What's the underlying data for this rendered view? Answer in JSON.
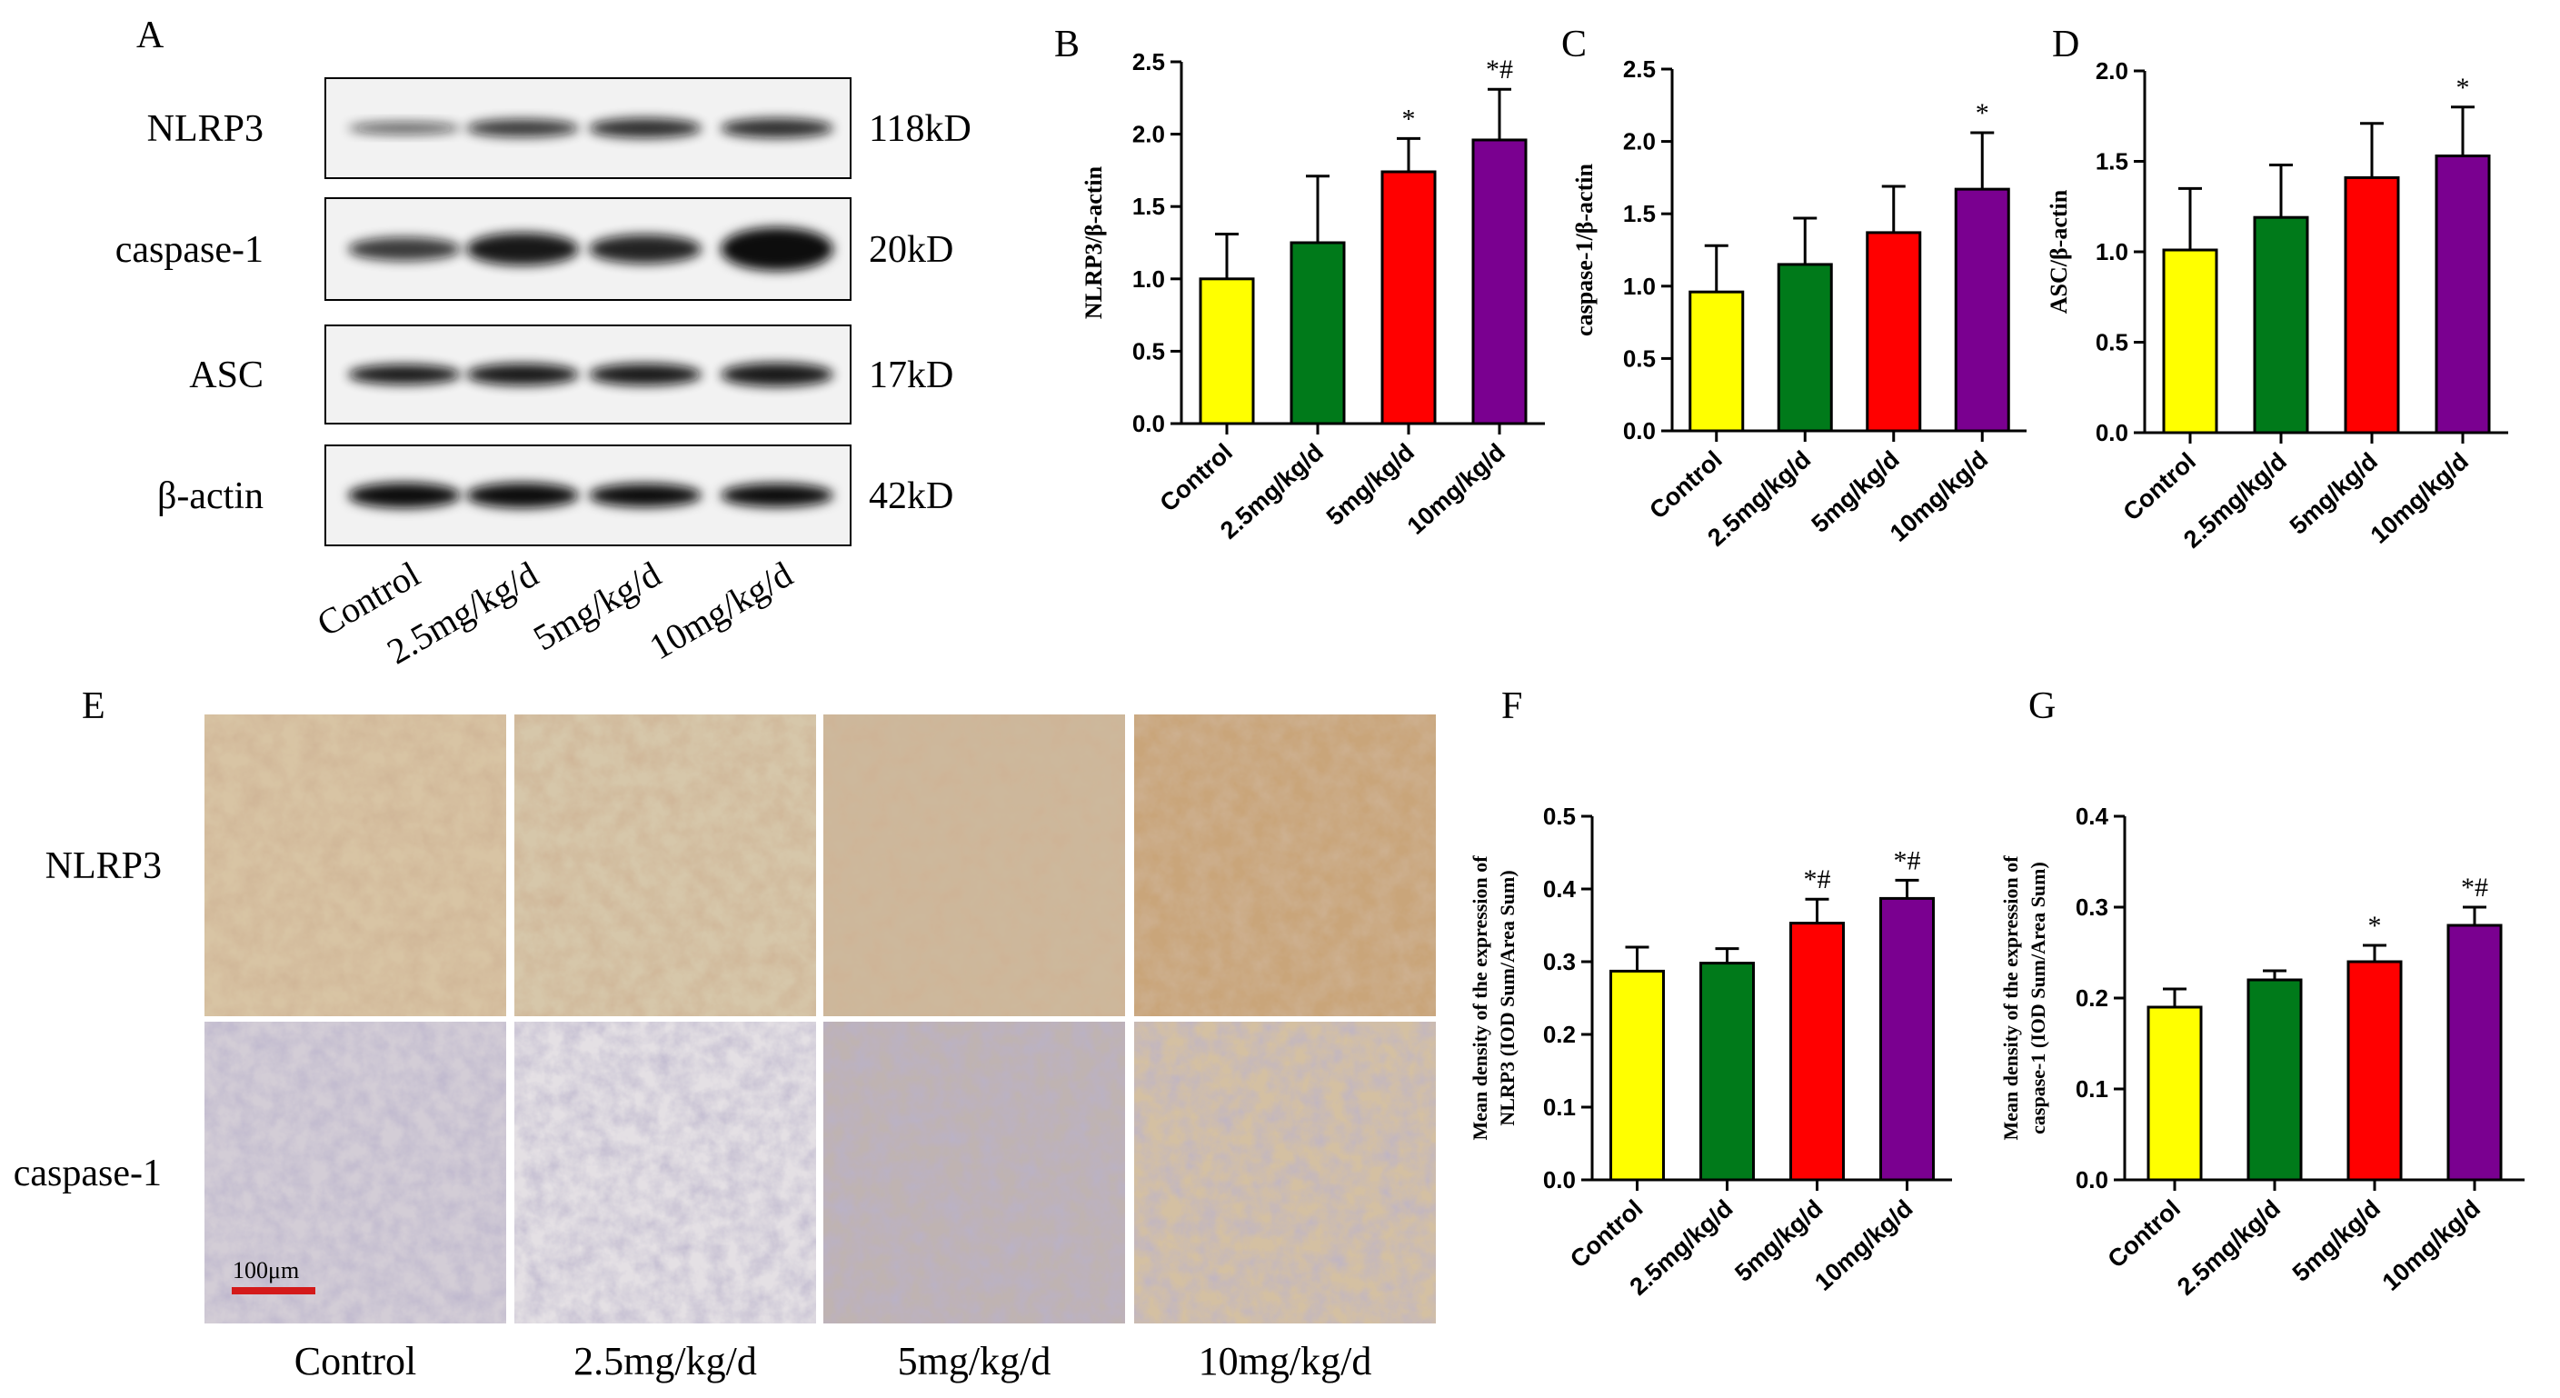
{
  "panel_letters": [
    "A",
    "B",
    "C",
    "D",
    "E",
    "F",
    "G"
  ],
  "colors": {
    "control": "#ffff00",
    "dose_2_5": "#007a1a",
    "dose_5": "#ff0000",
    "dose_10": "#7a0090",
    "scale_bar": "#d41a1a"
  },
  "western_blot": {
    "proteins": [
      "NLRP3",
      "caspase-1",
      "ASC",
      "β-actin"
    ],
    "sizes": [
      "118kD",
      "20kD",
      "17kD",
      "42kD"
    ],
    "lanes": [
      "Control",
      "2.5mg/kg/d",
      "5mg/kg/d",
      "10mg/kg/d"
    ]
  },
  "ihc": {
    "rows": [
      "NLRP3",
      "caspase-1"
    ],
    "columns": [
      "Control",
      "2.5mg/kg/d",
      "5mg/kg/d",
      "10mg/kg/d"
    ],
    "scale_bar_label": "100μm"
  },
  "chart_data": [
    {
      "panel": "B",
      "type": "bar",
      "ylabel": "NLRP3/β-actin",
      "ylim": [
        0,
        2.5
      ],
      "yticks": [
        "0.0",
        "0.5",
        "1.0",
        "1.5",
        "2.0",
        "2.5"
      ],
      "categories": [
        "Control",
        "2.5mg/kg/d",
        "5mg/kg/d",
        "10mg/kg/d"
      ],
      "values": [
        1.0,
        1.25,
        1.74,
        1.96
      ],
      "errors": [
        0.31,
        0.46,
        0.23,
        0.35
      ],
      "annotations": [
        "",
        "",
        "*",
        "*#"
      ],
      "grid": false
    },
    {
      "panel": "C",
      "type": "bar",
      "ylabel": "caspase-1/β-actin",
      "ylim": [
        0,
        2.5
      ],
      "yticks": [
        "0.0",
        "0.5",
        "1.0",
        "1.5",
        "2.0",
        "2.5"
      ],
      "categories": [
        "Control",
        "2.5mg/kg/d",
        "5mg/kg/d",
        "10mg/kg/d"
      ],
      "values": [
        0.96,
        1.15,
        1.37,
        1.67
      ],
      "errors": [
        0.32,
        0.32,
        0.32,
        0.39
      ],
      "annotations": [
        "",
        "",
        "",
        "*"
      ],
      "grid": false
    },
    {
      "panel": "D",
      "type": "bar",
      "ylabel": "ASC/β-actin",
      "ylim": [
        0,
        2.0
      ],
      "yticks": [
        "0.0",
        "0.5",
        "1.0",
        "1.5",
        "2.0"
      ],
      "categories": [
        "Control",
        "2.5mg/kg/d",
        "5mg/kg/d",
        "10mg/kg/d"
      ],
      "values": [
        1.01,
        1.19,
        1.41,
        1.53
      ],
      "errors": [
        0.34,
        0.29,
        0.3,
        0.27
      ],
      "annotations": [
        "",
        "",
        "",
        "*"
      ],
      "grid": false
    },
    {
      "panel": "F",
      "type": "bar",
      "ylabel": "Mean density of the expression of NLRP3 (IOD Sum/Area Sum)",
      "ylabel_lines": [
        "Mean density of the expression of",
        "NLRP3 (IOD Sum/Area Sum)"
      ],
      "ylim": [
        0,
        0.5
      ],
      "yticks": [
        "0.0",
        "0.1",
        "0.2",
        "0.3",
        "0.4",
        "0.5"
      ],
      "categories": [
        "Control",
        "2.5mg/kg/d",
        "5mg/kg/d",
        "10mg/kg/d"
      ],
      "values": [
        0.287,
        0.298,
        0.353,
        0.387
      ],
      "errors": [
        0.033,
        0.02,
        0.033,
        0.025
      ],
      "annotations": [
        "",
        "",
        "*#",
        "*#"
      ],
      "grid": false
    },
    {
      "panel": "G",
      "type": "bar",
      "ylabel": "Mean density of the expression of caspase-1 (IOD Sum/Area Sum)",
      "ylabel_lines": [
        "Mean density of the expression of",
        "caspase-1 (IOD Sum/Area Sum)"
      ],
      "ylim": [
        0,
        0.4
      ],
      "yticks": [
        "0.0",
        "0.1",
        "0.2",
        "0.3",
        "0.4"
      ],
      "categories": [
        "Control",
        "2.5mg/kg/d",
        "5mg/kg/d",
        "10mg/kg/d"
      ],
      "values": [
        0.19,
        0.22,
        0.24,
        0.28
      ],
      "errors": [
        0.02,
        0.01,
        0.018,
        0.02
      ],
      "annotations": [
        "",
        "",
        "*",
        "*#"
      ],
      "grid": false
    }
  ]
}
